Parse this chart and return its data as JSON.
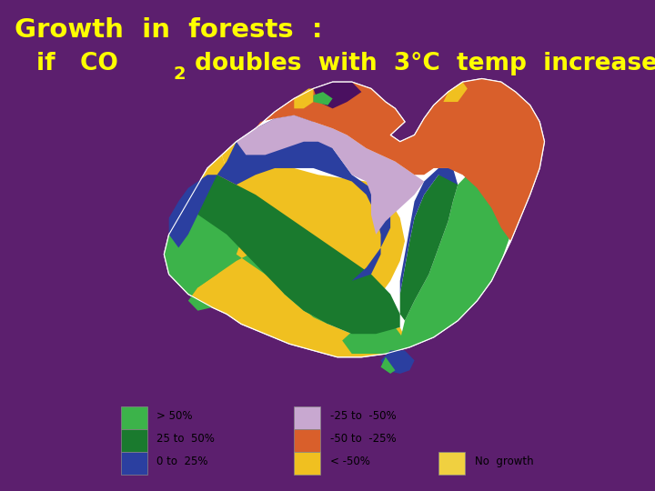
{
  "bg_color": "#5c1f6e",
  "title_line1": "Growth  in  forests  :",
  "title_color": "#ffff00",
  "title_fontsize": 21,
  "subtitle_fontsize": 19,
  "legend_items": [
    {
      "color": "#3cb34a",
      "label": "> 50%"
    },
    {
      "color": "#1a7a2e",
      "label": "25 to  50%"
    },
    {
      "color": "#2b3fa0",
      "label": "0 to  25%"
    },
    {
      "color": "#c8a8d0",
      "label": "-25 to  -50%"
    },
    {
      "color": "#d95f2b",
      "label": "-50 to  -25%"
    },
    {
      "color": "#f0c020",
      "label": "< -50%"
    },
    {
      "color": "#f0d040",
      "label": "No  growth"
    }
  ]
}
